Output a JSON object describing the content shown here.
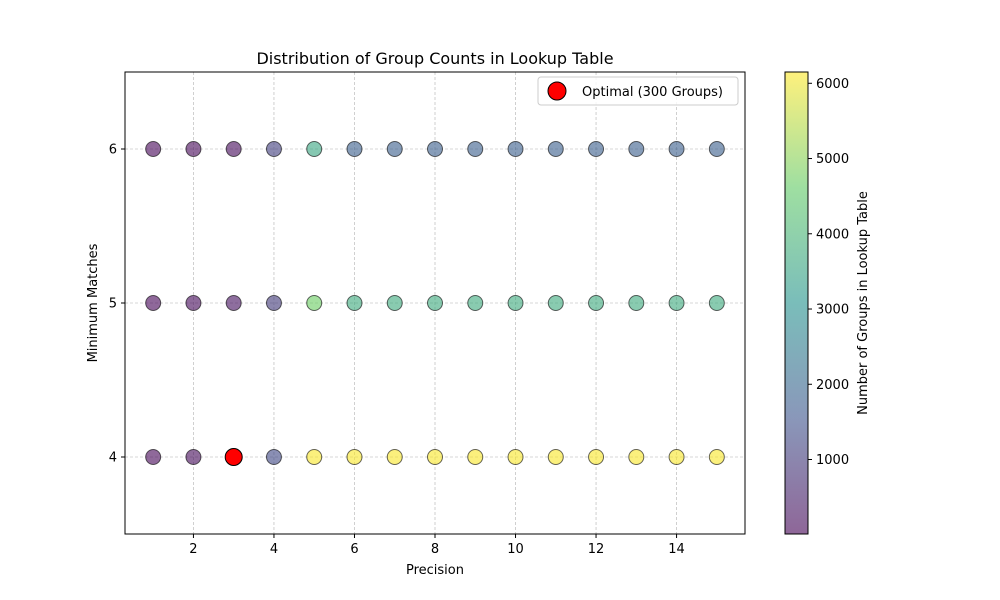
{
  "chart_data": {
    "type": "scatter",
    "title": "Distribution of Group Counts in Lookup Table",
    "xlabel": "Precision",
    "ylabel": "Minimum Matches",
    "xlim": [
      0.3,
      15.7
    ],
    "ylim": [
      3.5,
      6.5
    ],
    "xticks": [
      2,
      4,
      6,
      8,
      10,
      12,
      14
    ],
    "yticks": [
      4,
      5,
      6
    ],
    "grid": true,
    "grid_style": "dashed",
    "legend_placement": "top-right",
    "colormap": "viridis",
    "point_alpha": 0.6,
    "colorbar": {
      "label": "Number of Groups in Lookup Table",
      "range": [
        10,
        6150
      ],
      "ticks": [
        1000,
        2000,
        3000,
        4000,
        5000,
        6000
      ]
    },
    "series": [
      {
        "min_matches": 6,
        "x": [
          1,
          2,
          3,
          4,
          5,
          6,
          7,
          8,
          9,
          10,
          11,
          12,
          13,
          14,
          15
        ],
        "groups": [
          60,
          80,
          120,
          1100,
          3600,
          1800,
          1800,
          1800,
          1800,
          1800,
          1800,
          1800,
          1800,
          1800,
          1800
        ]
      },
      {
        "min_matches": 5,
        "x": [
          1,
          2,
          3,
          4,
          5,
          6,
          7,
          8,
          9,
          10,
          11,
          12,
          13,
          14,
          15
        ],
        "groups": [
          70,
          120,
          250,
          1000,
          4700,
          3700,
          3700,
          3700,
          3700,
          3700,
          3700,
          3700,
          3700,
          3700,
          3700
        ]
      },
      {
        "min_matches": 4,
        "x": [
          1,
          2,
          3,
          4,
          5,
          6,
          7,
          8,
          9,
          10,
          11,
          12,
          13,
          14,
          15
        ],
        "groups": [
          80,
          150,
          300,
          1300,
          6100,
          6100,
          6100,
          6100,
          6100,
          6100,
          6100,
          6100,
          6100,
          6100,
          6100
        ]
      }
    ],
    "highlight": {
      "label": "Optimal (300 Groups)",
      "x": 3,
      "y": 4,
      "color": "#ff0000"
    }
  }
}
